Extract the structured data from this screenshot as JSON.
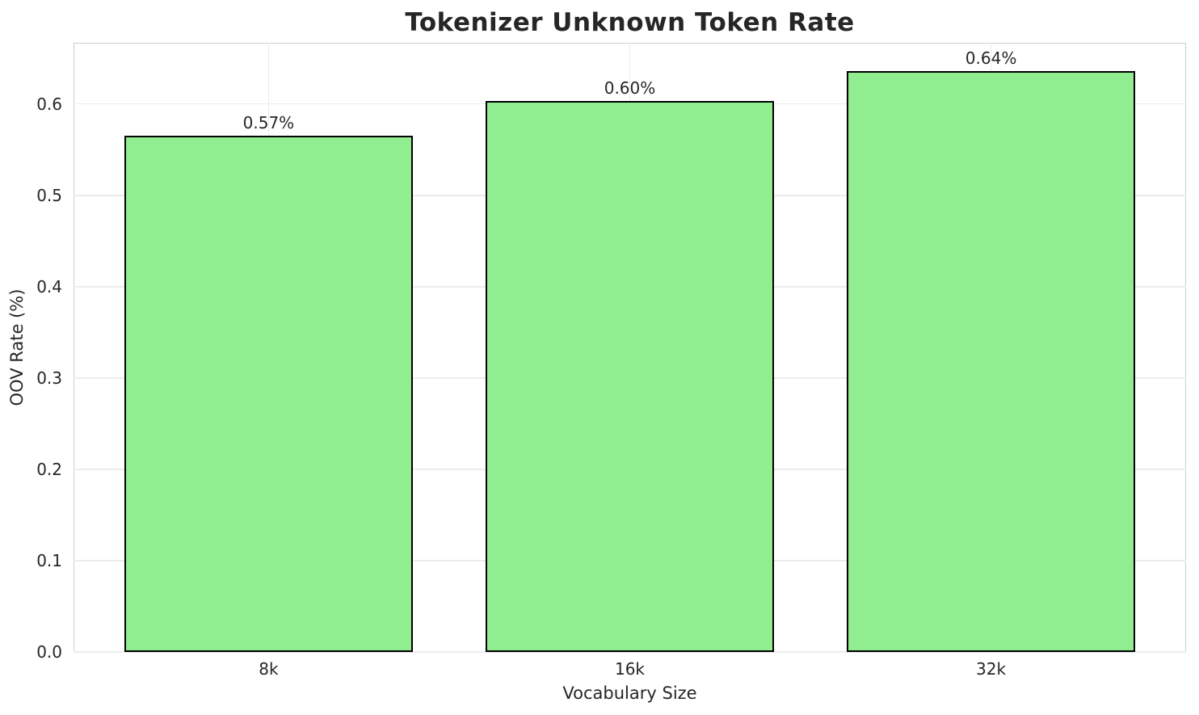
{
  "chart_data": {
    "type": "bar",
    "title": "Tokenizer Unknown Token Rate",
    "xlabel": "Vocabulary Size",
    "ylabel": "OOV Rate (%)",
    "categories": [
      "8k",
      "16k",
      "32k"
    ],
    "values": [
      0.565,
      0.603,
      0.636
    ],
    "value_labels": [
      "0.57%",
      "0.60%",
      "0.64%"
    ],
    "ylim": [
      0,
      0.667
    ],
    "yticks": [
      0.0,
      0.1,
      0.2,
      0.3,
      0.4,
      0.5,
      0.6
    ],
    "ytick_labels": [
      "0.0",
      "0.1",
      "0.2",
      "0.3",
      "0.4",
      "0.5",
      "0.6"
    ],
    "xlim": [
      -0.54,
      2.54
    ],
    "bar_width": 0.8,
    "grid": true,
    "legend": "none",
    "colors": {
      "bar_fill": "#90ee90",
      "bar_edge": "#000000",
      "grid_line": "#ececec",
      "spine": "#cdcdcd",
      "text": "#262626",
      "background": "#ffffff"
    }
  }
}
